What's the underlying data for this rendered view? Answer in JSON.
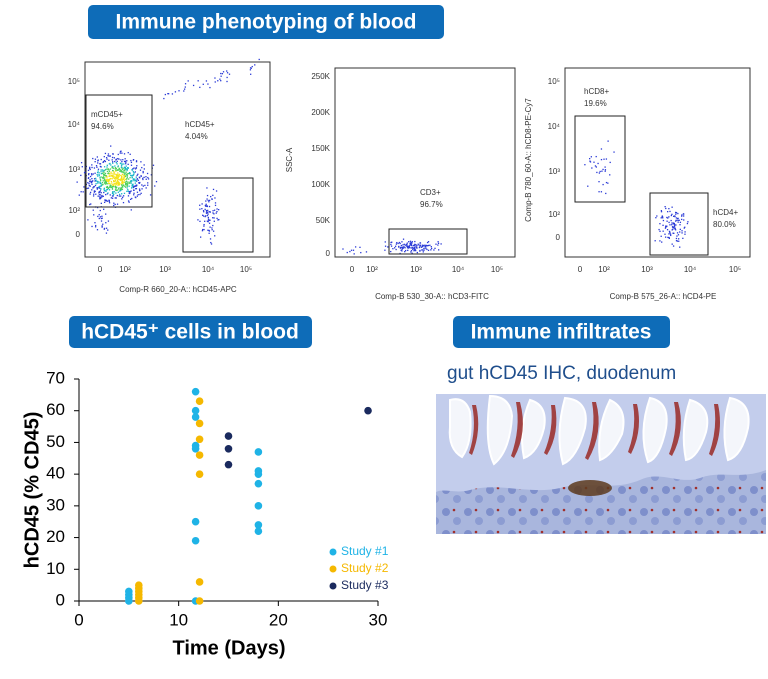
{
  "headers": {
    "phenotyping": "Immune phenotyping of blood",
    "cells": "hCD45⁺ cells in blood",
    "infiltrates": "Immune infiltrates",
    "ihc_caption": "gut hCD45 IHC, duodenum"
  },
  "flow_panels": [
    {
      "x_label": "Comp-R 660_20-A:: hCD45-APC",
      "y_ticks": [
        "10⁵",
        "10⁴",
        "10³",
        "10²",
        "0"
      ],
      "x_ticks": [
        "0",
        "10²",
        "10³",
        "10⁴",
        "10⁵"
      ],
      "gates": [
        {
          "name": "mCD45+",
          "percent": "94.6%"
        },
        {
          "name": "hCD45+",
          "percent": "4.04%"
        }
      ]
    },
    {
      "x_label": "Comp-B 530_30-A:: hCD3-FITC",
      "y_label": "SSC-A",
      "y_ticks": [
        "250K",
        "200K",
        "150K",
        "100K",
        "50K",
        "0"
      ],
      "x_ticks": [
        "0",
        "10²",
        "10³",
        "10⁴",
        "10⁵"
      ],
      "gates": [
        {
          "name": "CD3+",
          "percent": "96.7%"
        }
      ]
    },
    {
      "x_label": "Comp-B 575_26-A:: hCD4-PE",
      "y_label": "Comp-B 780_60-A:: hCD8-PE-Cy7",
      "y_ticks": [
        "10⁵",
        "10⁴",
        "10³",
        "10²",
        "0"
      ],
      "x_ticks": [
        "0",
        "10²",
        "10³",
        "10⁴",
        "10⁵"
      ],
      "gates": [
        {
          "name": "hCD8+",
          "percent": "19.6%"
        },
        {
          "name": "hCD4+",
          "percent": "80.0%"
        }
      ]
    }
  ],
  "chart_data": {
    "type": "scatter",
    "x_label": "Time (Days)",
    "y_label": "hCD45 (% CD45)",
    "xlim": [
      0,
      30
    ],
    "xticks": [
      0,
      10,
      20,
      30
    ],
    "ylim": [
      0,
      70
    ],
    "yticks": [
      0,
      10,
      20,
      30,
      40,
      50,
      60,
      70
    ],
    "series": [
      {
        "name": "Study #1",
        "color": "#1fb3e6",
        "x": [
          5,
          5,
          5,
          5,
          11.7,
          11.7,
          11.7,
          11.7,
          11.7,
          11.7,
          11.7,
          11.7,
          18,
          18,
          18,
          18,
          18,
          18,
          18
        ],
        "values": [
          0,
          1,
          2,
          3,
          66,
          60,
          58,
          49,
          48,
          25,
          19,
          0,
          47,
          41,
          40,
          37,
          30,
          24,
          22
        ]
      },
      {
        "name": "Study #2",
        "color": "#f5b800",
        "x": [
          6,
          6,
          6,
          6,
          6,
          6,
          12.1,
          12.1,
          12.1,
          12.1,
          12.1,
          12.1,
          12.1
        ],
        "values": [
          0,
          1,
          2,
          3,
          4,
          5,
          63,
          56,
          51,
          46,
          40,
          6,
          0
        ]
      },
      {
        "name": "Study #3",
        "color": "#1a2a5e",
        "x": [
          15,
          15,
          15,
          29
        ],
        "values": [
          52,
          48,
          43,
          60
        ]
      }
    ]
  }
}
